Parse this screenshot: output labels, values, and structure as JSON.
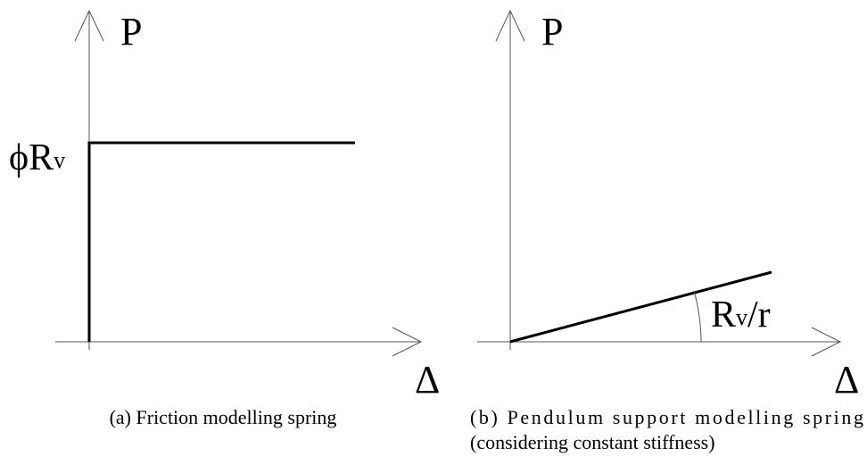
{
  "panels": [
    {
      "y_label": "P",
      "x_label": "Δ",
      "level_label_main": "ϕR",
      "level_label_sub": "v",
      "caption": [
        "(a) Friction modelling spring"
      ]
    },
    {
      "y_label": "P",
      "x_label": "Δ",
      "slope_label_main": "R",
      "slope_label_sub": "v",
      "slope_label_tail": "/r",
      "caption": [
        "(b) Pendulum support modelling spring",
        "(considering constant stiffness)"
      ]
    }
  ]
}
